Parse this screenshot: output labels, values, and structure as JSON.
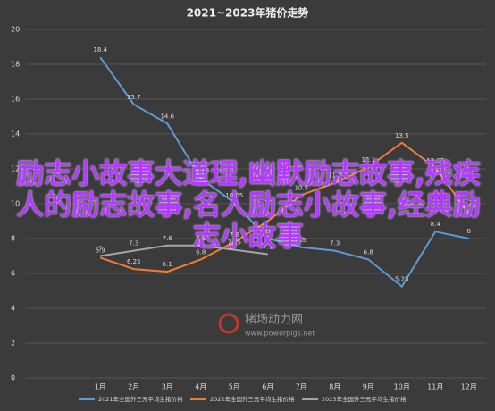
{
  "chart_data": {
    "type": "line",
    "title": "2021~2023年猪价走势",
    "categories": [
      "1月",
      "2月",
      "3月",
      "4月",
      "5月",
      "6月",
      "7月",
      "8月",
      "9月",
      "10月",
      "11月",
      "12月"
    ],
    "series": [
      {
        "name": "2021年全国外三元平均生猪价格",
        "color": "#5b9bd5",
        "values": [
          18.4,
          15.7,
          14.6,
          11.45,
          10.05,
          8.0,
          7.5,
          7.3,
          6.8,
          5.25,
          8.4,
          8.0
        ]
      },
      {
        "name": "2022年全国外三元平均生猪价格",
        "color": "#ed7d31",
        "values": [
          6.9,
          6.25,
          6.1,
          6.8,
          7.8,
          9.0,
          10.5,
          11.2,
          12.1,
          13.5,
          12.06,
          9.45
        ]
      },
      {
        "name": "2023年全国外三元平均生猪价格",
        "color": "#a5a5a5",
        "values": [
          7.0,
          7.3,
          7.6,
          7.6,
          7.35,
          7.1,
          null,
          null,
          null,
          null,
          null,
          null
        ]
      }
    ],
    "ylim": [
      0,
      20
    ],
    "yticks": [
      0,
      2,
      4,
      6,
      8,
      10,
      12,
      14,
      16,
      18,
      20
    ],
    "grid": true
  },
  "watermark": {
    "name": "猪场动力网",
    "url": "www.powerpigs.net"
  },
  "overlay": "励志小故事大道理,幽默励志故事,残疾人的励志故事,名人励志小故事,经典励志小故事"
}
